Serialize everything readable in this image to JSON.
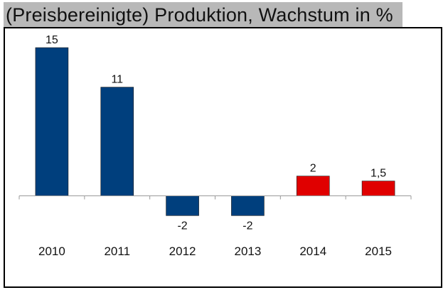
{
  "title": "(Preisbereinigte) Produktion, Wachstum in %",
  "chart_data": {
    "type": "bar",
    "title": "(Preisbereinigte) Produktion, Wachstum in %",
    "categories": [
      "2010",
      "2011",
      "2012",
      "2013",
      "2014",
      "2015"
    ],
    "values": [
      15,
      11,
      -2,
      -2,
      2,
      1.5
    ],
    "value_labels": [
      "15",
      "11",
      "-2",
      "-2",
      "2",
      "1,5"
    ],
    "bar_colors": [
      "#003f7d",
      "#003f7d",
      "#003f7d",
      "#003f7d",
      "#e00000",
      "#e00000"
    ],
    "xlabel": "",
    "ylabel": "",
    "grid": false,
    "legend": "none"
  }
}
